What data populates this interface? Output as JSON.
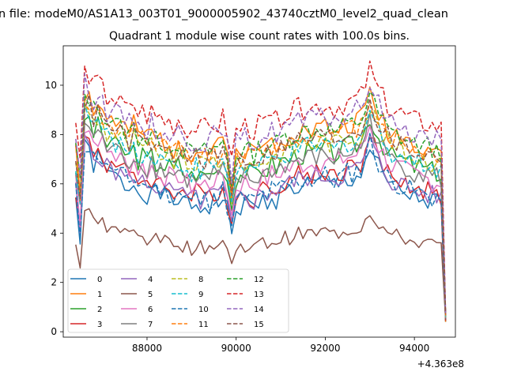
{
  "chart_data": {
    "type": "line",
    "suptitle": "n file: modeM0/AS1A13_003T01_9000005902_43740cztM0_level2_quad_clean",
    "title": "Quadrant 1 module wise count rates with 100.0s bins.",
    "xlabel": "",
    "ylabel": "",
    "x_offset_label": "+4.363e8",
    "xlim": [
      86120,
      94920
    ],
    "ylim": [
      -0.22,
      11.6
    ],
    "xticks": [
      88000,
      90000,
      92000,
      94000
    ],
    "xtick_labels": [
      "88000",
      "90000",
      "92000",
      "94000"
    ],
    "yticks": [
      0,
      2,
      4,
      6,
      8,
      10
    ],
    "ytick_labels": [
      "0",
      "2",
      "4",
      "6",
      "8",
      "10"
    ],
    "x": [
      86400,
      86500,
      86600,
      86700,
      86800,
      86900,
      87000,
      87100,
      87200,
      87300,
      87400,
      87500,
      87600,
      87700,
      87800,
      87900,
      88000,
      88100,
      88200,
      88300,
      88400,
      88500,
      88600,
      88700,
      88800,
      88900,
      89000,
      89100,
      89200,
      89300,
      89400,
      89500,
      89600,
      89700,
      89800,
      89900,
      90000,
      90100,
      90200,
      90300,
      90400,
      90500,
      90600,
      90700,
      90800,
      90900,
      91000,
      91100,
      91200,
      91300,
      91400,
      91500,
      91600,
      91700,
      91800,
      91900,
      92000,
      92100,
      92200,
      92300,
      92400,
      92500,
      92600,
      92700,
      92800,
      92900,
      93000,
      93100,
      93200,
      93300,
      93400,
      93500,
      93600,
      93700,
      93800,
      93900,
      94000,
      94100,
      94200,
      94300,
      94400,
      94500,
      94600,
      94700
    ],
    "base": [
      6.6,
      4.9,
      8.6,
      8.5,
      8.0,
      8.2,
      7.9,
      7.5,
      7.7,
      7.4,
      7.3,
      7.2,
      7.0,
      7.3,
      6.9,
      7.0,
      6.8,
      7.0,
      6.7,
      6.8,
      6.6,
      6.6,
      6.4,
      6.7,
      6.4,
      6.3,
      6.2,
      6.4,
      6.2,
      6.3,
      6.3,
      6.5,
      6.4,
      6.7,
      6.1,
      5.0,
      6.2,
      6.3,
      6.4,
      6.3,
      6.2,
      6.4,
      6.5,
      6.5,
      6.7,
      6.6,
      6.8,
      6.9,
      6.9,
      7.0,
      7.1,
      7.1,
      7.2,
      7.1,
      7.2,
      7.2,
      7.3,
      7.2,
      7.1,
      7.2,
      7.3,
      7.4,
      7.4,
      7.5,
      7.6,
      8.1,
      8.7,
      8.2,
      7.8,
      7.5,
      7.2,
      7.0,
      7.0,
      6.9,
      6.8,
      6.7,
      6.6,
      6.6,
      6.5,
      6.5,
      6.4,
      6.4,
      6.3,
      0.6
    ],
    "legend": {
      "placement": "lower-left",
      "ncol": 4
    },
    "series": [
      {
        "name": "0",
        "color": "#1f77b4",
        "dash": false,
        "offset": -1.2,
        "end": 0.4,
        "seed": 1
      },
      {
        "name": "1",
        "color": "#ff7f0e",
        "dash": false,
        "offset": 1.05,
        "end": 0.4,
        "seed": 2
      },
      {
        "name": "2",
        "color": "#2ca02c",
        "dash": false,
        "offset": 0.1,
        "end": 0.45,
        "seed": 3
      },
      {
        "name": "3",
        "color": "#d62728",
        "dash": false,
        "offset": -0.75,
        "end": 0.45,
        "seed": 4
      },
      {
        "name": "4",
        "color": "#9467bd",
        "dash": false,
        "offset": -0.9,
        "end": 0.5,
        "seed": 5
      },
      {
        "name": "5",
        "color": "#8c564b",
        "dash": false,
        "offset": -2.35,
        "end": 0.5,
        "seed": 6
      },
      {
        "name": "6",
        "color": "#e377c2",
        "dash": false,
        "offset": -0.3,
        "end": 0.55,
        "seed": 7
      },
      {
        "name": "7",
        "color": "#7f7f7f",
        "dash": false,
        "offset": -0.1,
        "end": 0.55,
        "seed": 8
      },
      {
        "name": "8",
        "color": "#bcbd22",
        "dash": true,
        "offset": 0.5,
        "end": 0.6,
        "seed": 9
      },
      {
        "name": "9",
        "color": "#17becf",
        "dash": true,
        "offset": 0.3,
        "end": 0.6,
        "seed": 10
      },
      {
        "name": "10",
        "color": "#1f77b4",
        "dash": true,
        "offset": -0.95,
        "end": 0.65,
        "seed": 11
      },
      {
        "name": "11",
        "color": "#ff7f0e",
        "dash": true,
        "offset": 0.8,
        "end": 0.65,
        "seed": 12
      },
      {
        "name": "12",
        "color": "#2ca02c",
        "dash": true,
        "offset": 1.0,
        "end": 0.7,
        "seed": 13
      },
      {
        "name": "13",
        "color": "#d62728",
        "dash": true,
        "offset": 1.95,
        "end": 0.7,
        "seed": 14
      },
      {
        "name": "14",
        "color": "#9467bd",
        "dash": true,
        "offset": 1.45,
        "end": 0.75,
        "seed": 15
      },
      {
        "name": "15",
        "color": "#8c564b",
        "dash": true,
        "offset": 0.7,
        "end": 0.75,
        "seed": 16
      }
    ]
  }
}
